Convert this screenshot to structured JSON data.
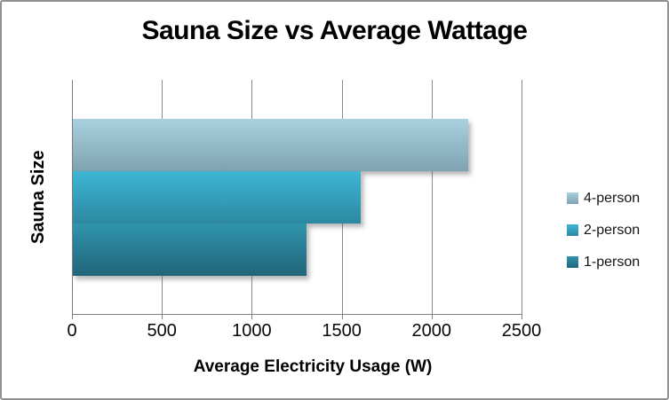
{
  "chart_data": {
    "type": "bar",
    "orientation": "horizontal",
    "title": "Sauna Size vs Average Wattage",
    "xlabel": "Average Electricity Usage (W)",
    "ylabel": "Sauna Size",
    "xlim": [
      0,
      2500
    ],
    "xticks": [
      0,
      500,
      1000,
      1500,
      2000,
      2500
    ],
    "grid": true,
    "legend_position": "right",
    "categories": [
      "Sauna Size"
    ],
    "series": [
      {
        "name": "4-person",
        "values": [
          2200
        ],
        "color_top": "#a9d1e0",
        "color_bottom": "#7fa2b0"
      },
      {
        "name": "2-person",
        "values": [
          1600
        ],
        "color_top": "#3eb6d5",
        "color_bottom": "#2d88a1"
      },
      {
        "name": "1-person",
        "values": [
          1300
        ],
        "color_top": "#3094ad",
        "color_bottom": "#21657a"
      }
    ]
  },
  "colors": {
    "background": "#ffffff",
    "figure_border": "#919191",
    "gridline": "#8a8a8a",
    "axis": "#7f7f7f",
    "text": "#000000"
  }
}
